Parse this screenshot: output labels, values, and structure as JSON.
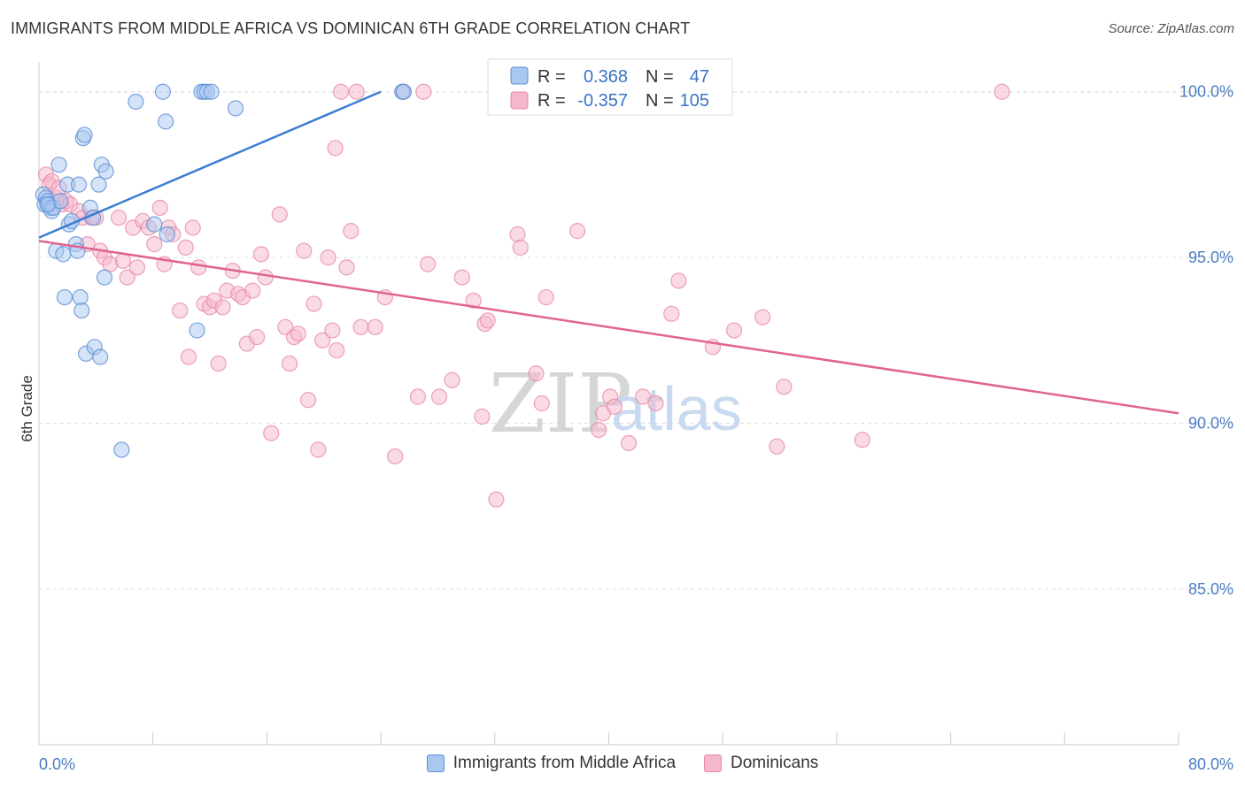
{
  "title": "IMMIGRANTS FROM MIDDLE AFRICA VS DOMINICAN 6TH GRADE CORRELATION CHART",
  "source": "Source: ZipAtlas.com",
  "watermark": {
    "zip": "ZIP",
    "atlas": "atlas"
  },
  "colors": {
    "blue_fill": "#a9c8ef",
    "blue_stroke": "#5b8fd6",
    "blue_line": "#3a7bd5",
    "pink_fill": "#f5b7cb",
    "pink_stroke": "#e889a8",
    "pink_line": "#e0648f",
    "value_text": "#3a73c4",
    "grid": "#dddddd"
  },
  "legend": {
    "rows": [
      {
        "r_label": "R =",
        "r_value": "0.368",
        "n_label": "N =",
        "n_value": "47"
      },
      {
        "r_label": "R =",
        "r_value": "-0.357",
        "n_label": "N =",
        "n_value": "105"
      }
    ]
  },
  "chart_data": {
    "type": "scatter",
    "title": "IMMIGRANTS FROM MIDDLE AFRICA VS DOMINICAN 6TH GRADE CORRELATION CHART",
    "xlabel": "",
    "ylabel": "6th Grade",
    "xlim": [
      0,
      80
    ],
    "ylim": [
      80.3,
      100.9
    ],
    "x_tick_labels": [
      "0.0%",
      "80.0%"
    ],
    "y_ticks": [
      85,
      90,
      95,
      100
    ],
    "y_tick_labels": [
      "85.0%",
      "90.0%",
      "95.0%",
      "100.0%"
    ],
    "series": [
      {
        "name": "Immigrants from Middle Africa",
        "color": "blue",
        "r": 0.368,
        "n": 47,
        "trend": [
          [
            0.0,
            95.6
          ],
          [
            24.0,
            100.0
          ]
        ],
        "points": [
          [
            0.3,
            96.9
          ],
          [
            0.4,
            96.6
          ],
          [
            0.5,
            96.8
          ],
          [
            0.6,
            96.7
          ],
          [
            0.7,
            96.6
          ],
          [
            0.8,
            96.5
          ],
          [
            0.9,
            96.4
          ],
          [
            1.0,
            96.5
          ],
          [
            1.2,
            95.2
          ],
          [
            1.4,
            97.8
          ],
          [
            1.5,
            96.7
          ],
          [
            1.7,
            95.1
          ],
          [
            1.8,
            93.8
          ],
          [
            2.0,
            97.2
          ],
          [
            2.1,
            96.0
          ],
          [
            2.3,
            96.1
          ],
          [
            2.6,
            95.4
          ],
          [
            2.7,
            95.2
          ],
          [
            2.8,
            97.2
          ],
          [
            2.9,
            93.8
          ],
          [
            3.0,
            93.4
          ],
          [
            3.1,
            98.6
          ],
          [
            3.2,
            98.7
          ],
          [
            3.3,
            92.1
          ],
          [
            3.6,
            96.5
          ],
          [
            3.8,
            96.2
          ],
          [
            3.9,
            92.3
          ],
          [
            4.2,
            97.2
          ],
          [
            4.3,
            92.0
          ],
          [
            4.4,
            97.8
          ],
          [
            4.6,
            94.4
          ],
          [
            4.7,
            97.6
          ],
          [
            5.8,
            89.2
          ],
          [
            6.8,
            99.7
          ],
          [
            8.1,
            96.0
          ],
          [
            8.7,
            100.0
          ],
          [
            8.9,
            99.1
          ],
          [
            9.0,
            95.7
          ],
          [
            11.1,
            92.8
          ],
          [
            11.4,
            100.0
          ],
          [
            11.6,
            100.0
          ],
          [
            11.8,
            100.0
          ],
          [
            12.1,
            100.0
          ],
          [
            13.8,
            99.5
          ],
          [
            25.5,
            100.0
          ],
          [
            25.6,
            100.0
          ],
          [
            0.6,
            96.6
          ]
        ]
      },
      {
        "name": "Dominicans",
        "color": "pink",
        "r": -0.357,
        "n": 105,
        "trend": [
          [
            0.0,
            95.5
          ],
          [
            80.0,
            90.3
          ]
        ],
        "points": [
          [
            0.5,
            97.5
          ],
          [
            0.7,
            97.2
          ],
          [
            0.9,
            97.3
          ],
          [
            1.2,
            96.8
          ],
          [
            1.4,
            97.1
          ],
          [
            1.6,
            96.6
          ],
          [
            1.9,
            96.7
          ],
          [
            2.2,
            96.6
          ],
          [
            2.8,
            96.4
          ],
          [
            3.1,
            96.2
          ],
          [
            3.4,
            95.4
          ],
          [
            3.7,
            96.2
          ],
          [
            4.0,
            96.2
          ],
          [
            4.3,
            95.2
          ],
          [
            4.6,
            95.0
          ],
          [
            5.0,
            94.8
          ],
          [
            5.6,
            96.2
          ],
          [
            5.9,
            94.9
          ],
          [
            6.2,
            94.4
          ],
          [
            6.6,
            95.9
          ],
          [
            6.9,
            94.7
          ],
          [
            7.3,
            96.1
          ],
          [
            7.7,
            95.9
          ],
          [
            8.1,
            95.4
          ],
          [
            8.5,
            96.5
          ],
          [
            8.8,
            94.8
          ],
          [
            9.1,
            95.9
          ],
          [
            9.4,
            95.7
          ],
          [
            9.9,
            93.4
          ],
          [
            10.3,
            95.3
          ],
          [
            10.5,
            92.0
          ],
          [
            10.8,
            95.9
          ],
          [
            11.2,
            94.7
          ],
          [
            11.6,
            93.6
          ],
          [
            12.0,
            93.5
          ],
          [
            12.3,
            93.7
          ],
          [
            12.6,
            91.8
          ],
          [
            12.9,
            93.5
          ],
          [
            13.2,
            94.0
          ],
          [
            13.6,
            94.6
          ],
          [
            14.0,
            93.9
          ],
          [
            14.3,
            93.8
          ],
          [
            14.6,
            92.4
          ],
          [
            15.0,
            94.0
          ],
          [
            15.3,
            92.6
          ],
          [
            15.6,
            95.1
          ],
          [
            15.9,
            94.4
          ],
          [
            16.3,
            89.7
          ],
          [
            16.9,
            96.3
          ],
          [
            17.3,
            92.9
          ],
          [
            17.6,
            91.8
          ],
          [
            17.9,
            92.6
          ],
          [
            18.2,
            92.7
          ],
          [
            18.6,
            95.2
          ],
          [
            18.9,
            90.7
          ],
          [
            19.3,
            93.6
          ],
          [
            19.6,
            89.2
          ],
          [
            19.9,
            92.5
          ],
          [
            20.3,
            95.0
          ],
          [
            20.6,
            92.8
          ],
          [
            20.9,
            92.2
          ],
          [
            21.2,
            100.0
          ],
          [
            21.6,
            94.7
          ],
          [
            21.9,
            95.8
          ],
          [
            22.3,
            100.0
          ],
          [
            22.6,
            92.9
          ],
          [
            23.6,
            92.9
          ],
          [
            24.3,
            93.8
          ],
          [
            25.0,
            89.0
          ],
          [
            25.6,
            100.0
          ],
          [
            26.6,
            90.8
          ],
          [
            27.0,
            100.0
          ],
          [
            27.3,
            94.8
          ],
          [
            28.1,
            90.8
          ],
          [
            29.0,
            91.3
          ],
          [
            29.7,
            94.4
          ],
          [
            30.5,
            93.7
          ],
          [
            31.1,
            90.2
          ],
          [
            31.3,
            93.0
          ],
          [
            31.5,
            93.1
          ],
          [
            32.1,
            87.7
          ],
          [
            32.8,
            100.0
          ],
          [
            33.6,
            95.7
          ],
          [
            33.8,
            95.3
          ],
          [
            34.9,
            91.5
          ],
          [
            35.3,
            90.6
          ],
          [
            35.6,
            93.8
          ],
          [
            37.8,
            95.8
          ],
          [
            39.3,
            89.8
          ],
          [
            39.6,
            90.3
          ],
          [
            40.1,
            90.8
          ],
          [
            40.4,
            90.5
          ],
          [
            41.4,
            89.4
          ],
          [
            42.4,
            90.8
          ],
          [
            43.3,
            90.6
          ],
          [
            44.4,
            93.3
          ],
          [
            44.9,
            94.3
          ],
          [
            47.3,
            92.3
          ],
          [
            48.8,
            92.8
          ],
          [
            50.8,
            93.2
          ],
          [
            51.8,
            89.3
          ],
          [
            52.3,
            91.1
          ],
          [
            57.8,
            89.5
          ],
          [
            67.6,
            100.0
          ],
          [
            20.8,
            98.3
          ]
        ]
      }
    ],
    "legend_position": "top-center"
  },
  "bottom_legend": [
    {
      "label": "Immigrants from Middle Africa"
    },
    {
      "label": "Dominicans"
    }
  ]
}
